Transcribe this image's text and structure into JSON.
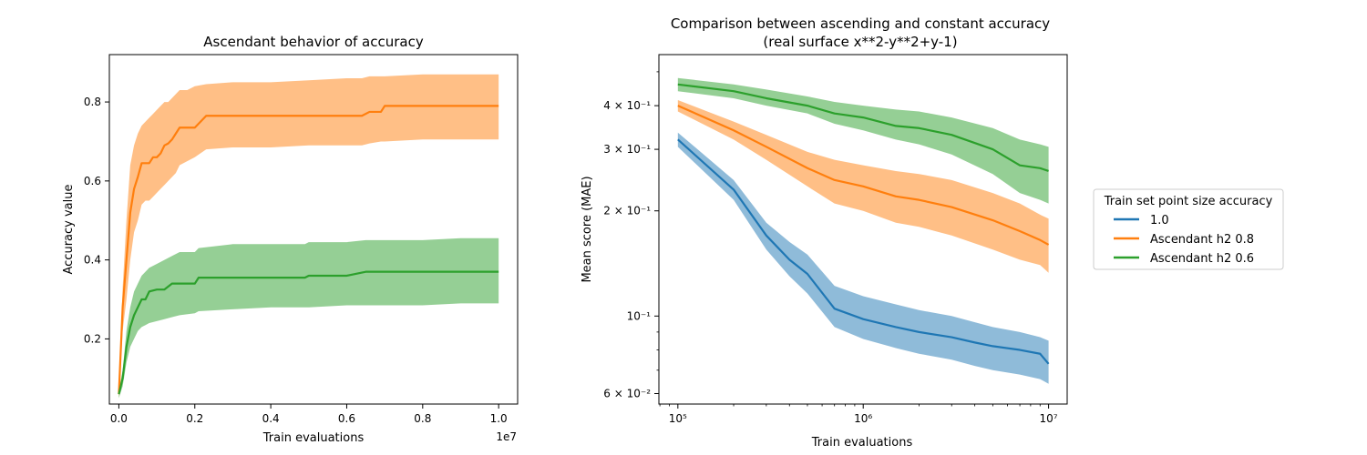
{
  "chart_data": [
    {
      "type": "line",
      "title": "Ascendant behavior of accuracy",
      "xlabel": "Train evaluations",
      "ylabel": "Accuracy value",
      "x_offset_label": "1e7",
      "xlim": [
        -250000,
        10500000
      ],
      "ylim": [
        0.035,
        0.92
      ],
      "xscale": "linear",
      "yscale": "linear",
      "x_ticks": [
        0,
        2000000,
        4000000,
        6000000,
        8000000,
        10000000
      ],
      "x_tick_labels": [
        "0.0",
        "0.2",
        "0.4",
        "0.6",
        "0.8",
        "1.0"
      ],
      "y_ticks": [
        0.2,
        0.4,
        0.6,
        0.8
      ],
      "y_tick_labels": [
        "0.2",
        "0.4",
        "0.6",
        "0.8"
      ],
      "grid": false,
      "series": [
        {
          "color": "#ff7f0e",
          "x": [
            0,
            100000,
            200000,
            300000,
            400000,
            500000,
            600000,
            700000,
            800000,
            900000,
            1000000,
            1100000,
            1200000,
            1300000,
            1400000,
            1500000,
            1600000,
            1800000,
            2000000,
            2300000,
            3000000,
            4000000,
            5000000,
            6000000,
            6400000,
            6600000,
            6900000,
            7000000,
            8000000,
            9000000,
            10000000
          ],
          "mean": [
            0.06,
            0.28,
            0.4,
            0.52,
            0.58,
            0.61,
            0.645,
            0.645,
            0.645,
            0.66,
            0.66,
            0.67,
            0.69,
            0.695,
            0.705,
            0.72,
            0.735,
            0.735,
            0.735,
            0.765,
            0.765,
            0.765,
            0.765,
            0.765,
            0.765,
            0.775,
            0.775,
            0.79,
            0.79,
            0.79,
            0.79
          ],
          "upper": [
            0.07,
            0.33,
            0.5,
            0.64,
            0.69,
            0.72,
            0.74,
            0.75,
            0.76,
            0.77,
            0.78,
            0.79,
            0.8,
            0.8,
            0.81,
            0.82,
            0.83,
            0.83,
            0.84,
            0.845,
            0.85,
            0.85,
            0.855,
            0.86,
            0.86,
            0.865,
            0.865,
            0.865,
            0.87,
            0.87,
            0.87
          ],
          "lower": [
            0.05,
            0.22,
            0.3,
            0.4,
            0.47,
            0.5,
            0.54,
            0.55,
            0.55,
            0.56,
            0.57,
            0.58,
            0.59,
            0.6,
            0.61,
            0.62,
            0.64,
            0.65,
            0.66,
            0.68,
            0.685,
            0.685,
            0.69,
            0.69,
            0.69,
            0.695,
            0.7,
            0.7,
            0.705,
            0.705,
            0.705
          ]
        },
        {
          "color": "#2ca02c",
          "x": [
            0,
            100000,
            200000,
            300000,
            400000,
            500000,
            600000,
            700000,
            800000,
            1000000,
            1200000,
            1400000,
            1600000,
            2000000,
            2100000,
            3000000,
            4000000,
            4900000,
            5000000,
            6000000,
            6500000,
            7000000,
            8000000,
            9000000,
            10000000
          ],
          "mean": [
            0.06,
            0.1,
            0.18,
            0.23,
            0.26,
            0.28,
            0.3,
            0.3,
            0.32,
            0.325,
            0.325,
            0.34,
            0.34,
            0.34,
            0.355,
            0.355,
            0.355,
            0.355,
            0.36,
            0.36,
            0.37,
            0.37,
            0.37,
            0.37,
            0.37
          ],
          "upper": [
            0.07,
            0.12,
            0.22,
            0.28,
            0.32,
            0.34,
            0.36,
            0.37,
            0.38,
            0.39,
            0.4,
            0.41,
            0.42,
            0.42,
            0.43,
            0.44,
            0.44,
            0.44,
            0.445,
            0.445,
            0.45,
            0.45,
            0.45,
            0.455,
            0.455
          ],
          "lower": [
            0.05,
            0.08,
            0.14,
            0.18,
            0.2,
            0.22,
            0.23,
            0.235,
            0.24,
            0.245,
            0.25,
            0.255,
            0.26,
            0.265,
            0.27,
            0.275,
            0.28,
            0.28,
            0.28,
            0.285,
            0.285,
            0.285,
            0.285,
            0.29,
            0.29
          ]
        }
      ]
    },
    {
      "type": "line",
      "title": "Comparison between ascending and constant accuracy",
      "subtitle": "(real surface x**2-y**2+y-1)",
      "xlabel": "Train evaluations",
      "ylabel": "Mean score (MAE)",
      "xlim": [
        79000,
        12600000
      ],
      "ylim": [
        0.056,
        0.56
      ],
      "xscale": "log",
      "yscale": "log",
      "x_ticks": [
        100000,
        1000000,
        10000000
      ],
      "x_tick_labels": [
        "10⁵",
        "10⁶",
        "10⁷"
      ],
      "y_ticks": [
        0.06,
        0.1,
        0.2,
        0.3,
        0.4
      ],
      "y_tick_labels": [
        "6 × 10⁻²",
        "10⁻¹",
        "2 × 10⁻¹",
        "3 × 10⁻¹",
        "4 × 10⁻¹"
      ],
      "grid": false,
      "legend": {
        "title": "Train set point size accuracy",
        "placement": "outside-right",
        "entries": [
          "1.0",
          "Ascendant h2 0.8",
          "Ascendant h2 0.6"
        ]
      },
      "series": [
        {
          "name": "1.0",
          "color": "#1f77b4",
          "x": [
            100000,
            200000,
            300000,
            400000,
            500000,
            700000,
            1000000,
            1500000,
            2000000,
            3000000,
            4000000,
            5000000,
            7000000,
            9000000,
            10000000
          ],
          "mean": [
            0.32,
            0.23,
            0.17,
            0.145,
            0.132,
            0.105,
            0.098,
            0.093,
            0.09,
            0.087,
            0.084,
            0.082,
            0.08,
            0.078,
            0.073
          ],
          "upper": [
            0.335,
            0.245,
            0.185,
            0.163,
            0.15,
            0.122,
            0.114,
            0.108,
            0.104,
            0.1,
            0.096,
            0.093,
            0.09,
            0.087,
            0.085
          ],
          "lower": [
            0.305,
            0.215,
            0.155,
            0.13,
            0.116,
            0.093,
            0.086,
            0.081,
            0.078,
            0.075,
            0.072,
            0.07,
            0.068,
            0.066,
            0.064
          ]
        },
        {
          "name": "Ascendant h2 0.8",
          "color": "#ff7f0e",
          "x": [
            100000,
            200000,
            300000,
            500000,
            700000,
            1000000,
            1500000,
            2000000,
            3000000,
            5000000,
            7000000,
            9000000,
            10000000
          ],
          "mean": [
            0.4,
            0.34,
            0.305,
            0.265,
            0.245,
            0.235,
            0.22,
            0.215,
            0.205,
            0.188,
            0.175,
            0.165,
            0.16
          ],
          "upper": [
            0.415,
            0.36,
            0.33,
            0.295,
            0.28,
            0.27,
            0.26,
            0.255,
            0.245,
            0.225,
            0.21,
            0.195,
            0.19
          ],
          "lower": [
            0.385,
            0.32,
            0.28,
            0.235,
            0.21,
            0.2,
            0.185,
            0.18,
            0.17,
            0.155,
            0.145,
            0.14,
            0.133
          ]
        },
        {
          "name": "Ascendant h2 0.6",
          "color": "#2ca02c",
          "x": [
            100000,
            200000,
            300000,
            500000,
            700000,
            1000000,
            1500000,
            2000000,
            3000000,
            5000000,
            7000000,
            9000000,
            10000000
          ],
          "mean": [
            0.46,
            0.44,
            0.42,
            0.4,
            0.38,
            0.37,
            0.35,
            0.345,
            0.33,
            0.3,
            0.27,
            0.265,
            0.26
          ],
          "upper": [
            0.48,
            0.46,
            0.445,
            0.425,
            0.41,
            0.4,
            0.39,
            0.385,
            0.37,
            0.345,
            0.32,
            0.31,
            0.305
          ],
          "lower": [
            0.44,
            0.42,
            0.4,
            0.38,
            0.355,
            0.34,
            0.32,
            0.31,
            0.29,
            0.255,
            0.225,
            0.215,
            0.21
          ]
        }
      ]
    }
  ]
}
